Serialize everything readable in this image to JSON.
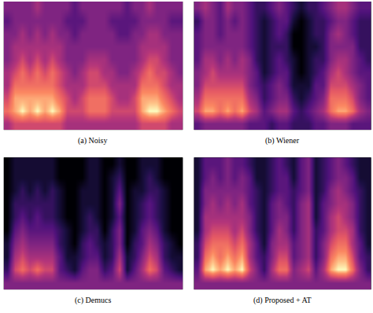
{
  "chart_data": [
    {
      "type": "heatmap",
      "title": "(a) Noisy",
      "tick_labels": false,
      "z": [
        [
          5,
          6,
          6,
          6,
          6,
          6,
          6,
          6,
          5,
          5,
          5,
          5,
          5,
          5,
          5,
          5,
          5,
          5,
          6,
          6,
          6,
          6,
          5,
          5
        ],
        [
          7,
          8,
          9,
          8,
          9,
          8,
          9,
          8,
          6,
          6,
          6,
          7,
          7,
          7,
          6,
          6,
          6,
          6,
          8,
          9,
          9,
          8,
          7,
          6
        ],
        [
          6,
          8,
          8,
          8,
          8,
          8,
          8,
          7,
          6,
          5,
          6,
          7,
          7,
          7,
          6,
          5,
          5,
          6,
          8,
          8,
          8,
          7,
          6,
          5
        ],
        [
          5,
          7,
          7,
          7,
          7,
          7,
          7,
          6,
          5,
          5,
          5,
          6,
          6,
          6,
          5,
          5,
          5,
          5,
          7,
          7,
          7,
          6,
          5,
          5
        ],
        [
          5,
          6,
          7,
          6,
          7,
          6,
          7,
          6,
          5,
          4,
          5,
          6,
          6,
          5,
          5,
          4,
          4,
          5,
          6,
          7,
          6,
          6,
          5,
          4
        ],
        [
          4,
          5,
          6,
          5,
          6,
          5,
          6,
          5,
          4,
          4,
          4,
          5,
          5,
          5,
          4,
          4,
          4,
          4,
          5,
          6,
          6,
          5,
          4,
          4
        ],
        [
          4,
          5,
          5,
          5,
          5,
          5,
          5,
          5,
          4,
          4,
          4,
          4,
          4,
          4,
          4,
          4,
          4,
          4,
          5,
          5,
          5,
          5,
          4,
          4
        ],
        [
          4,
          4,
          5,
          4,
          5,
          4,
          5,
          4,
          4,
          3,
          4,
          4,
          4,
          4,
          4,
          3,
          3,
          4,
          4,
          5,
          5,
          4,
          4,
          4
        ],
        [
          3,
          4,
          4,
          4,
          4,
          4,
          4,
          4,
          3,
          3,
          3,
          4,
          4,
          4,
          3,
          3,
          3,
          3,
          4,
          4,
          4,
          4,
          3,
          3
        ],
        [
          4,
          4,
          4,
          4,
          5,
          4,
          4,
          4,
          4,
          3,
          4,
          4,
          4,
          4,
          4,
          4,
          3,
          4,
          4,
          5,
          4,
          4,
          4,
          4
        ]
      ]
    },
    {
      "type": "heatmap",
      "title": "(b) Wiener",
      "tick_labels": false,
      "z": [
        [
          3,
          4,
          4,
          4,
          4,
          4,
          4,
          3,
          3,
          3,
          2,
          3,
          3,
          2,
          2,
          2,
          3,
          3,
          4,
          4,
          4,
          3,
          3,
          3
        ],
        [
          6,
          8,
          8,
          7,
          8,
          7,
          8,
          6,
          5,
          3,
          4,
          5,
          5,
          3,
          2,
          3,
          4,
          5,
          7,
          8,
          8,
          7,
          5,
          4
        ],
        [
          5,
          7,
          7,
          7,
          7,
          7,
          7,
          5,
          4,
          2,
          3,
          4,
          4,
          2,
          1,
          2,
          3,
          4,
          7,
          7,
          7,
          6,
          4,
          3
        ],
        [
          4,
          6,
          6,
          6,
          6,
          6,
          6,
          4,
          3,
          2,
          3,
          4,
          3,
          1,
          1,
          1,
          3,
          3,
          6,
          6,
          6,
          5,
          4,
          3
        ],
        [
          4,
          5,
          6,
          5,
          5,
          5,
          5,
          4,
          3,
          1,
          2,
          3,
          3,
          1,
          0,
          1,
          2,
          3,
          5,
          6,
          5,
          4,
          3,
          3
        ],
        [
          3,
          5,
          5,
          4,
          5,
          4,
          5,
          4,
          2,
          1,
          2,
          3,
          2,
          1,
          0,
          1,
          2,
          2,
          4,
          5,
          5,
          4,
          3,
          2
        ],
        [
          3,
          4,
          4,
          4,
          4,
          4,
          4,
          3,
          2,
          1,
          2,
          2,
          2,
          0,
          0,
          1,
          1,
          2,
          4,
          4,
          4,
          4,
          2,
          2
        ],
        [
          3,
          4,
          4,
          3,
          4,
          4,
          4,
          3,
          2,
          1,
          2,
          3,
          2,
          0,
          0,
          1,
          2,
          2,
          4,
          5,
          4,
          3,
          2,
          2
        ],
        [
          2,
          4,
          4,
          3,
          4,
          3,
          4,
          3,
          2,
          1,
          2,
          3,
          3,
          1,
          0,
          1,
          2,
          2,
          3,
          4,
          4,
          3,
          2,
          2
        ],
        [
          4,
          5,
          4,
          3,
          5,
          4,
          4,
          3,
          2,
          2,
          3,
          4,
          3,
          2,
          1,
          2,
          2,
          3,
          4,
          5,
          5,
          4,
          3,
          3
        ]
      ]
    },
    {
      "type": "heatmap",
      "title": "(c) Demucs",
      "tick_labels": false,
      "z": [
        [
          4,
          4,
          4,
          4,
          4,
          4,
          4,
          4,
          4,
          4,
          4,
          4,
          4,
          4,
          4,
          4,
          4,
          4,
          4,
          4,
          4,
          4,
          4,
          4
        ],
        [
          2,
          6,
          7,
          6,
          7,
          6,
          6,
          3,
          2,
          1,
          3,
          4,
          4,
          2,
          3,
          6,
          1,
          3,
          5,
          7,
          6,
          3,
          2,
          1
        ],
        [
          1,
          5,
          6,
          5,
          5,
          5,
          5,
          3,
          1,
          1,
          2,
          3,
          3,
          1,
          2,
          5,
          1,
          2,
          4,
          6,
          5,
          2,
          1,
          1
        ],
        [
          1,
          4,
          5,
          4,
          4,
          4,
          4,
          2,
          1,
          0,
          2,
          3,
          2,
          1,
          2,
          4,
          0,
          2,
          3,
          5,
          4,
          2,
          1,
          0
        ],
        [
          0,
          3,
          4,
          3,
          3,
          3,
          3,
          2,
          1,
          0,
          1,
          2,
          2,
          0,
          2,
          4,
          0,
          1,
          3,
          4,
          3,
          1,
          0,
          0
        ],
        [
          0,
          2,
          3,
          2,
          3,
          2,
          2,
          1,
          0,
          0,
          1,
          2,
          1,
          0,
          1,
          3,
          0,
          1,
          2,
          3,
          2,
          1,
          0,
          0
        ],
        [
          0,
          2,
          2,
          2,
          2,
          2,
          2,
          1,
          0,
          0,
          1,
          1,
          1,
          0,
          1,
          4,
          0,
          1,
          2,
          3,
          2,
          1,
          0,
          0
        ],
        [
          0,
          1,
          2,
          1,
          2,
          1,
          2,
          1,
          0,
          0,
          1,
          1,
          1,
          0,
          1,
          3,
          0,
          1,
          1,
          2,
          2,
          1,
          0,
          0
        ],
        [
          0,
          1,
          1,
          1,
          1,
          1,
          1,
          0,
          0,
          0,
          0,
          1,
          1,
          0,
          1,
          2,
          0,
          0,
          1,
          2,
          1,
          0,
          0,
          0
        ],
        [
          0,
          1,
          1,
          1,
          1,
          1,
          1,
          0,
          0,
          0,
          0,
          1,
          1,
          0,
          0,
          1,
          0,
          0,
          1,
          1,
          1,
          0,
          0,
          0
        ]
      ]
    },
    {
      "type": "heatmap",
      "title": "(d) Proposed + AT",
      "tick_labels": false,
      "z": [
        [
          4,
          4,
          4,
          4,
          4,
          4,
          4,
          4,
          4,
          4,
          4,
          4,
          4,
          4,
          4,
          4,
          4,
          4,
          4,
          4,
          4,
          4,
          4,
          4
        ],
        [
          3,
          8,
          9,
          8,
          9,
          8,
          9,
          6,
          4,
          2,
          5,
          7,
          7,
          4,
          5,
          6,
          3,
          5,
          8,
          9,
          9,
          7,
          4,
          2
        ],
        [
          2,
          7,
          8,
          7,
          8,
          7,
          8,
          5,
          3,
          2,
          4,
          6,
          6,
          3,
          4,
          5,
          2,
          4,
          7,
          8,
          8,
          6,
          3,
          2
        ],
        [
          2,
          6,
          7,
          7,
          7,
          6,
          7,
          5,
          3,
          1,
          4,
          5,
          5,
          3,
          4,
          5,
          2,
          4,
          6,
          7,
          7,
          5,
          3,
          1
        ],
        [
          1,
          5,
          6,
          6,
          6,
          5,
          6,
          4,
          2,
          1,
          3,
          5,
          4,
          2,
          4,
          5,
          2,
          3,
          5,
          6,
          6,
          5,
          2,
          1
        ],
        [
          1,
          5,
          5,
          5,
          5,
          5,
          5,
          4,
          2,
          1,
          3,
          4,
          4,
          2,
          4,
          5,
          1,
          3,
          5,
          6,
          5,
          4,
          2,
          1
        ],
        [
          1,
          4,
          5,
          4,
          5,
          4,
          5,
          3,
          2,
          1,
          3,
          4,
          3,
          2,
          4,
          5,
          1,
          3,
          4,
          5,
          5,
          4,
          2,
          1
        ],
        [
          1,
          4,
          4,
          4,
          4,
          4,
          4,
          3,
          2,
          1,
          2,
          3,
          3,
          2,
          3,
          4,
          1,
          2,
          4,
          5,
          4,
          3,
          2,
          1
        ],
        [
          1,
          3,
          4,
          3,
          4,
          3,
          4,
          3,
          1,
          1,
          2,
          3,
          3,
          1,
          3,
          4,
          1,
          2,
          3,
          4,
          4,
          3,
          1,
          1
        ],
        [
          1,
          3,
          3,
          3,
          4,
          3,
          3,
          2,
          1,
          1,
          2,
          3,
          2,
          1,
          3,
          4,
          1,
          2,
          3,
          4,
          3,
          2,
          1,
          1
        ]
      ]
    }
  ]
}
